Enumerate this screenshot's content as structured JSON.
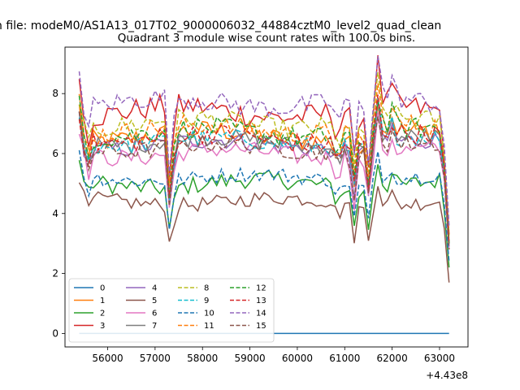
{
  "figure": {
    "suptitle": "n file: modeM0/AS1A13_017T02_9000006032_44884cztM0_level2_quad_clean",
    "title": "Quadrant 3 module wise count rates with 100.0s bins."
  },
  "chart_data": {
    "type": "line",
    "title": "Quadrant 3 module wise count rates with 100.0s bins.",
    "xlabel": "",
    "ylabel": "",
    "x_offset_label": "+4.43e8",
    "x_range": [
      55400,
      63200
    ],
    "xlim": [
      55100,
      63600
    ],
    "ylim": [
      -0.45,
      9.55
    ],
    "x_ticks": [
      56000,
      57000,
      58000,
      59000,
      60000,
      61000,
      62000,
      63000
    ],
    "x_tick_labels": [
      "56000",
      "57000",
      "58000",
      "59000",
      "60000",
      "61000",
      "62000",
      "63000"
    ],
    "y_ticks": [
      0,
      2,
      4,
      6,
      8
    ],
    "y_tick_labels": [
      "0",
      "2",
      "4",
      "6",
      "8"
    ],
    "grid": false,
    "legend_position": "lower-left",
    "legend_columns": 4,
    "series": [
      {
        "name": "0",
        "color": "#1f77b4",
        "dash": "solid",
        "base": 0.0,
        "noise": 0.0,
        "end": 0.0
      },
      {
        "name": "1",
        "color": "#ff7f0e",
        "dash": "solid",
        "base": 6.6,
        "noise": 0.35,
        "end": 3.0
      },
      {
        "name": "2",
        "color": "#2ca02c",
        "dash": "solid",
        "base": 5.0,
        "noise": 0.3,
        "end": 2.2
      },
      {
        "name": "3",
        "color": "#d62728",
        "dash": "solid",
        "base": 7.4,
        "noise": 0.4,
        "end": 3.3
      },
      {
        "name": "4",
        "color": "#9467bd",
        "dash": "solid",
        "base": 6.3,
        "noise": 0.3,
        "end": 2.9
      },
      {
        "name": "5",
        "color": "#8c564b",
        "dash": "solid",
        "base": 4.4,
        "noise": 0.25,
        "end": 1.7
      },
      {
        "name": "6",
        "color": "#e377c2",
        "dash": "solid",
        "base": 6.0,
        "noise": 0.3,
        "end": 2.8
      },
      {
        "name": "7",
        "color": "#7f7f7f",
        "dash": "solid",
        "base": 6.4,
        "noise": 0.3,
        "end": 3.0
      },
      {
        "name": "8",
        "color": "#bcbd22",
        "dash": "dashed",
        "base": 7.0,
        "noise": 0.35,
        "end": 3.2
      },
      {
        "name": "9",
        "color": "#17becf",
        "dash": "dashed",
        "base": 6.4,
        "noise": 0.3,
        "end": 2.9
      },
      {
        "name": "10",
        "color": "#1f77b4",
        "dash": "dashed",
        "base": 5.2,
        "noise": 0.25,
        "end": 2.4
      },
      {
        "name": "11",
        "color": "#ff7f0e",
        "dash": "dashed",
        "base": 6.8,
        "noise": 0.35,
        "end": 3.1
      },
      {
        "name": "12",
        "color": "#2ca02c",
        "dash": "dashed",
        "base": 6.7,
        "noise": 0.35,
        "end": 3.0
      },
      {
        "name": "13",
        "color": "#d62728",
        "dash": "dashed",
        "base": 6.5,
        "noise": 0.35,
        "end": 3.0
      },
      {
        "name": "14",
        "color": "#9467bd",
        "dash": "dashed",
        "base": 7.7,
        "noise": 0.35,
        "end": 3.6
      },
      {
        "name": "15",
        "color": "#8c564b",
        "dash": "dashed",
        "base": 6.2,
        "noise": 0.3,
        "end": 2.8
      }
    ]
  }
}
